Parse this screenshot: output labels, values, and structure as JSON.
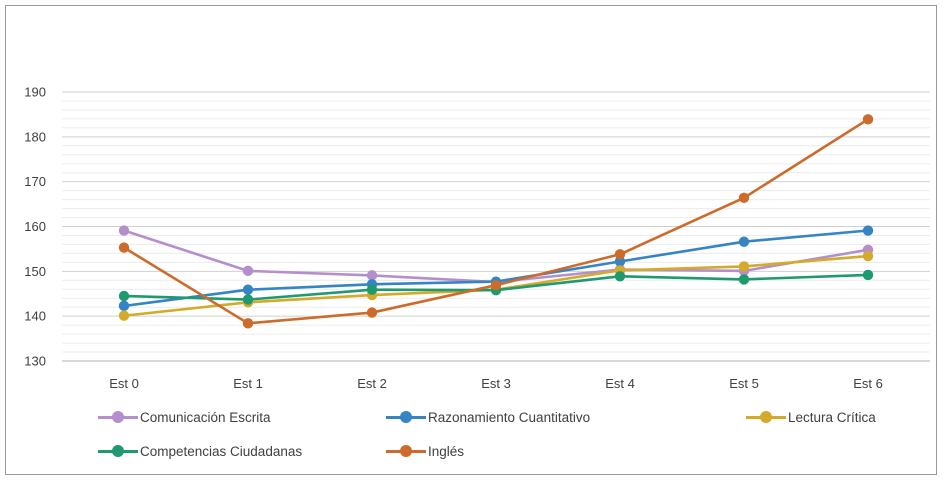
{
  "chart_data": {
    "type": "line",
    "categories": [
      "Est 0",
      "Est 1",
      "Est 2",
      "Est 3",
      "Est 4",
      "Est 5",
      "Est 6"
    ],
    "ylim": [
      130,
      190
    ],
    "yticks": [
      130,
      140,
      150,
      160,
      170,
      180,
      190
    ],
    "minor_grid_step": 2,
    "grid": true,
    "legend_position": "bottom",
    "series": [
      {
        "name": "Comunicación Escrita",
        "color": "#b48fcb",
        "values": [
          159.1,
          150.1,
          149.1,
          147.6,
          150.4,
          150.1,
          154.8
        ]
      },
      {
        "name": "Razonamiento Cuantitativo",
        "color": "#3584c4",
        "values": [
          142.3,
          145.9,
          147.1,
          147.7,
          152.2,
          156.6,
          159.1
        ]
      },
      {
        "name": "Lectura Crítica",
        "color": "#d4aa2a",
        "values": [
          140.1,
          143.1,
          144.7,
          145.9,
          150.2,
          151.1,
          153.4
        ]
      },
      {
        "name": "Competencias Ciudadanas",
        "color": "#1f9a6e",
        "values": [
          144.5,
          143.7,
          145.9,
          145.8,
          148.9,
          148.2,
          149.2
        ]
      },
      {
        "name": "Inglés",
        "color": "#cc6b2a",
        "values": [
          155.3,
          138.4,
          140.8,
          146.9,
          153.8,
          166.4,
          183.9
        ]
      }
    ]
  }
}
